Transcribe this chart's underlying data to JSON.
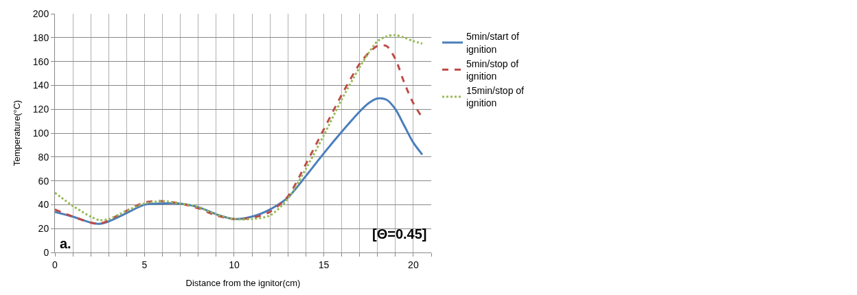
{
  "chart_data": {
    "type": "line",
    "xlabel": "Distance from the ignitor(cm)",
    "ylabel": "Temperature(°C)",
    "x": [
      0,
      1,
      2,
      2.5,
      3,
      4,
      5,
      6,
      7,
      8,
      9,
      10,
      11,
      12,
      13,
      14,
      15,
      16,
      17,
      17.5,
      18,
      18.5,
      19,
      19.5,
      20,
      20.5
    ],
    "series": [
      {
        "name": "5min/start of ignition",
        "color": "#4a7ebb",
        "line_style": "solid",
        "values": [
          34,
          30,
          25,
          24,
          26,
          33,
          40,
          41,
          41,
          38,
          32,
          28,
          30,
          36,
          46,
          64,
          83,
          101,
          118,
          125,
          129,
          128,
          120,
          106,
          92,
          82
        ]
      },
      {
        "name": "5min/stop of ignition",
        "color": "#be4b48",
        "line_style": "dashed",
        "values": [
          36,
          30,
          25,
          24,
          27,
          35,
          42,
          43,
          41,
          37,
          31,
          28,
          29,
          34,
          47,
          74,
          103,
          132,
          158,
          167,
          173,
          173,
          162,
          142,
          125,
          113
        ]
      },
      {
        "name": "15min/stop of ignition",
        "color": "#98b954",
        "line_style": "dotted",
        "values": [
          50,
          39,
          30,
          27,
          28,
          35,
          41,
          43,
          41,
          38,
          32,
          28,
          28,
          31,
          45,
          70,
          98,
          128,
          155,
          167,
          177,
          181,
          182,
          180,
          177,
          175
        ]
      }
    ],
    "xlim": [
      0,
      21
    ],
    "xticks": [
      0,
      {
        "value": 1,
        "label": null
      },
      {
        "value": 2,
        "label": null
      },
      {
        "value": 3,
        "label": null
      },
      {
        "value": 4,
        "label": null
      },
      5,
      {
        "value": 6,
        "label": null
      },
      {
        "value": 7,
        "label": null
      },
      {
        "value": 8,
        "label": null
      },
      {
        "value": 9,
        "label": null
      },
      10,
      {
        "value": 11,
        "label": null
      },
      {
        "value": 12,
        "label": null
      },
      {
        "value": 13,
        "label": null
      },
      {
        "value": 14,
        "label": null
      },
      15,
      {
        "value": 16,
        "label": null
      },
      {
        "value": 17,
        "label": null
      },
      {
        "value": 18,
        "label": null
      },
      {
        "value": 19,
        "label": null
      },
      20,
      {
        "value": 21,
        "label": null
      }
    ],
    "ylim": [
      0,
      200
    ],
    "yticks": [
      0,
      20,
      40,
      60,
      80,
      100,
      120,
      140,
      160,
      180,
      200
    ],
    "grid": true,
    "legend": "right",
    "marker": "none",
    "annotations": [
      "a.",
      "[Θ=0.45]"
    ]
  }
}
